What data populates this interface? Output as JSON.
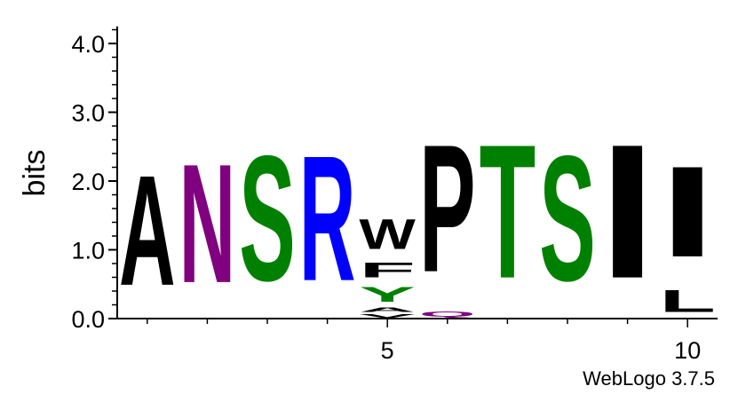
{
  "chart_data": {
    "type": "sequence-logo",
    "ylabel": "bits",
    "ylim": [
      0,
      4.3
    ],
    "yticks": [
      "0.0",
      "1.0",
      "2.0",
      "3.0",
      "4.0"
    ],
    "yticks_values": [
      0,
      1,
      2,
      3,
      4
    ],
    "xlim": [
      0.5,
      10.5
    ],
    "xticks_labels": [
      "5",
      "10"
    ],
    "xticks_values": [
      5,
      10
    ],
    "footer": "WebLogo 3.7.5",
    "colors": {
      "hydrophobic": "#000000",
      "polar": "#008000",
      "basic": "#0000ff",
      "amide": "#800080"
    },
    "positions": [
      {
        "position": 1,
        "letters": [
          {
            "letter": "A",
            "bits": 2.55,
            "color": "#000000"
          }
        ]
      },
      {
        "position": 2,
        "letters": [
          {
            "letter": "N",
            "bits": 2.75,
            "color": "#800080"
          }
        ]
      },
      {
        "position": 3,
        "letters": [
          {
            "letter": "S",
            "bits": 2.9,
            "color": "#008000"
          }
        ]
      },
      {
        "position": 4,
        "letters": [
          {
            "letter": "R",
            "bits": 2.9,
            "color": "#0000ff"
          }
        ]
      },
      {
        "position": 5,
        "letters": [
          {
            "letter": "V",
            "bits": 0.08,
            "color": "#000000"
          },
          {
            "letter": "A",
            "bits": 0.1,
            "color": "#000000"
          },
          {
            "letter": "Y",
            "bits": 0.35,
            "color": "#008000"
          },
          {
            "letter": "F",
            "bits": 0.35,
            "color": "#000000"
          },
          {
            "letter": "W",
            "bits": 0.7,
            "color": "#000000"
          }
        ]
      },
      {
        "position": 6,
        "letters": [
          {
            "letter": "Q",
            "bits": 0.12,
            "color": "#800080"
          },
          {
            "letter": "P",
            "bits": 2.95,
            "color": "#000000"
          }
        ]
      },
      {
        "position": 7,
        "letters": [
          {
            "letter": "T",
            "bits": 3.1,
            "color": "#008000"
          }
        ]
      },
      {
        "position": 8,
        "letters": [
          {
            "letter": "S",
            "bits": 2.9,
            "color": "#008000"
          }
        ]
      },
      {
        "position": 9,
        "letters": [
          {
            "letter": "I",
            "bits": 3.1,
            "color": "#000000"
          }
        ]
      },
      {
        "position": 10,
        "letters": [
          {
            "letter": "L",
            "bits": 0.5,
            "color": "#000000"
          },
          {
            "letter": "I",
            "bits": 2.1,
            "color": "#000000"
          }
        ]
      }
    ]
  }
}
